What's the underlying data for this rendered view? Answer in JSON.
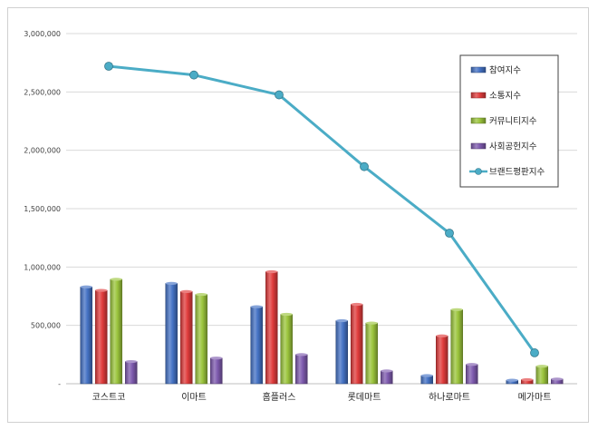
{
  "chart_data": {
    "type": "bar",
    "categories": [
      "코스트코",
      "이마트",
      "홈플러스",
      "롯데마트",
      "하나로마트",
      "메가마트"
    ],
    "ylim": [
      0,
      3000000
    ],
    "yticks": [
      0,
      500000,
      1000000,
      1500000,
      2000000,
      2500000,
      3000000
    ],
    "ytick_labels": [
      "-",
      "500,000",
      "1,000,000",
      "1,500,000",
      "2,000,000",
      "2,500,000",
      "3,000,000"
    ],
    "grid": true,
    "legend_position": "top-right",
    "series": [
      {
        "name": "참여지수",
        "kind": "bar",
        "color": "#4472C4",
        "values": [
          830000,
          860000,
          660000,
          540000,
          70000,
          30000
        ]
      },
      {
        "name": "소통지수",
        "kind": "bar",
        "color": "#E03C3C",
        "values": [
          800000,
          790000,
          960000,
          680000,
          410000,
          35000
        ]
      },
      {
        "name": "커뮤니티지수",
        "kind": "bar",
        "color": "#9BC43C",
        "values": [
          895000,
          765000,
          595000,
          520000,
          635000,
          150000
        ]
      },
      {
        "name": "사회공헌지수",
        "kind": "bar",
        "color": "#7E5AAE",
        "values": [
          190000,
          220000,
          250000,
          110000,
          165000,
          40000
        ]
      },
      {
        "name": "브랜드평판지수",
        "kind": "line",
        "color": "#4BACC6",
        "values": [
          2720000,
          2645000,
          2475000,
          1860000,
          1290000,
          265000
        ]
      }
    ]
  }
}
